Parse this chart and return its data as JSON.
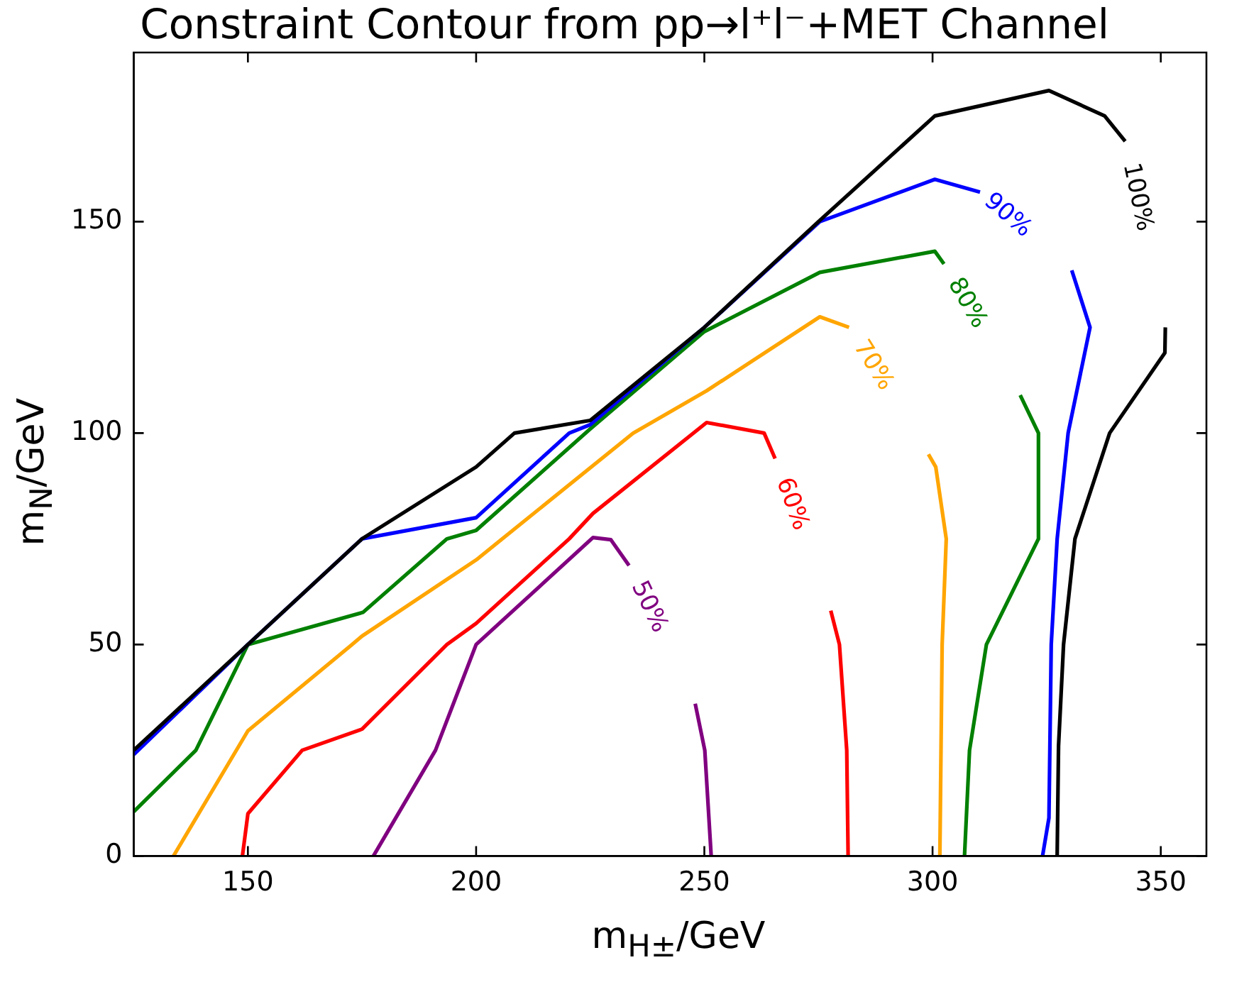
{
  "chart_data": {
    "type": "line",
    "title": "Constraint Contour from pp→l⁺l⁻+MET Channel",
    "xlabel": "m$_{H±}$/GeV",
    "ylabel": "m$_{N}$/GeV",
    "xlim": [
      125,
      360
    ],
    "xticks": [
      150,
      200,
      250,
      300,
      350
    ],
    "ylim": [
      0,
      190
    ],
    "yticks": [
      0,
      50,
      100,
      150
    ],
    "grid": false,
    "legend": false,
    "marker": "none",
    "line_style": "solid",
    "series": [
      {
        "name": "100%",
        "color": "#000000",
        "x": [
          125,
          150,
          175,
          200,
          208.4,
          225,
          250,
          275,
          300.5,
          325.5,
          337.7,
          342.2,
          null,
          351,
          350.9,
          338.8,
          331.2,
          328.7,
          327.6,
          327.3
        ],
        "values": [
          25,
          50,
          75,
          92,
          100,
          103,
          125,
          150,
          175,
          181,
          175,
          169,
          null,
          125,
          119,
          100,
          75,
          50,
          26,
          0
        ]
      },
      {
        "name": "90%",
        "color": "#0000ff",
        "x": [
          125,
          150,
          175,
          200,
          220.4,
          225,
          250,
          275.3,
          300.5,
          310.4,
          null,
          330.5,
          334.5,
          329.7,
          327.3,
          326,
          325.5,
          324.1
        ],
        "values": [
          24,
          50,
          75,
          80,
          100,
          102,
          125,
          150,
          160,
          157,
          null,
          138.5,
          125,
          100,
          75,
          50,
          9,
          0
        ]
      },
      {
        "name": "80%",
        "color": "#008000",
        "x": [
          125,
          138.6,
          150,
          175.2,
          193.6,
          200,
          225,
          250,
          275.3,
          300.5,
          302.5,
          null,
          319.2,
          323.2,
          323.2,
          311.8,
          308.1,
          307
        ],
        "values": [
          10.5,
          25,
          50,
          57.6,
          75,
          77,
          101,
          124,
          138,
          143,
          140,
          null,
          109,
          100,
          75,
          50,
          25,
          0
        ]
      },
      {
        "name": "70%",
        "color": "#ffa500",
        "x": [
          133.7,
          150,
          172.8,
          175,
          200,
          234.4,
          250.5,
          275.3,
          281.7,
          null,
          299.1,
          300.7,
          303,
          302.1,
          301.6
        ],
        "values": [
          0,
          29.6,
          50,
          52,
          70,
          100,
          110,
          127.5,
          125,
          null,
          95,
          92,
          75,
          50,
          0
        ]
      },
      {
        "name": "60%",
        "color": "#ff0000",
        "x": [
          148.8,
          150,
          161.9,
          175,
          193.6,
          200,
          220.4,
          225.6,
          250.5,
          263.1,
          265.5,
          null,
          277.7,
          279.6,
          281.2,
          281.5
        ],
        "values": [
          0,
          10,
          25,
          30,
          50,
          55,
          75,
          81,
          102.5,
          100,
          94,
          null,
          58,
          50,
          25,
          0
        ]
      },
      {
        "name": "50%",
        "color": "#800080",
        "x": [
          177.5,
          191.1,
          200,
          225.6,
          229.5,
          233.5,
          null,
          248,
          250.1,
          251.5
        ],
        "values": [
          0,
          25,
          50,
          75.3,
          74.8,
          68.7,
          null,
          36,
          25,
          0
        ]
      }
    ]
  }
}
